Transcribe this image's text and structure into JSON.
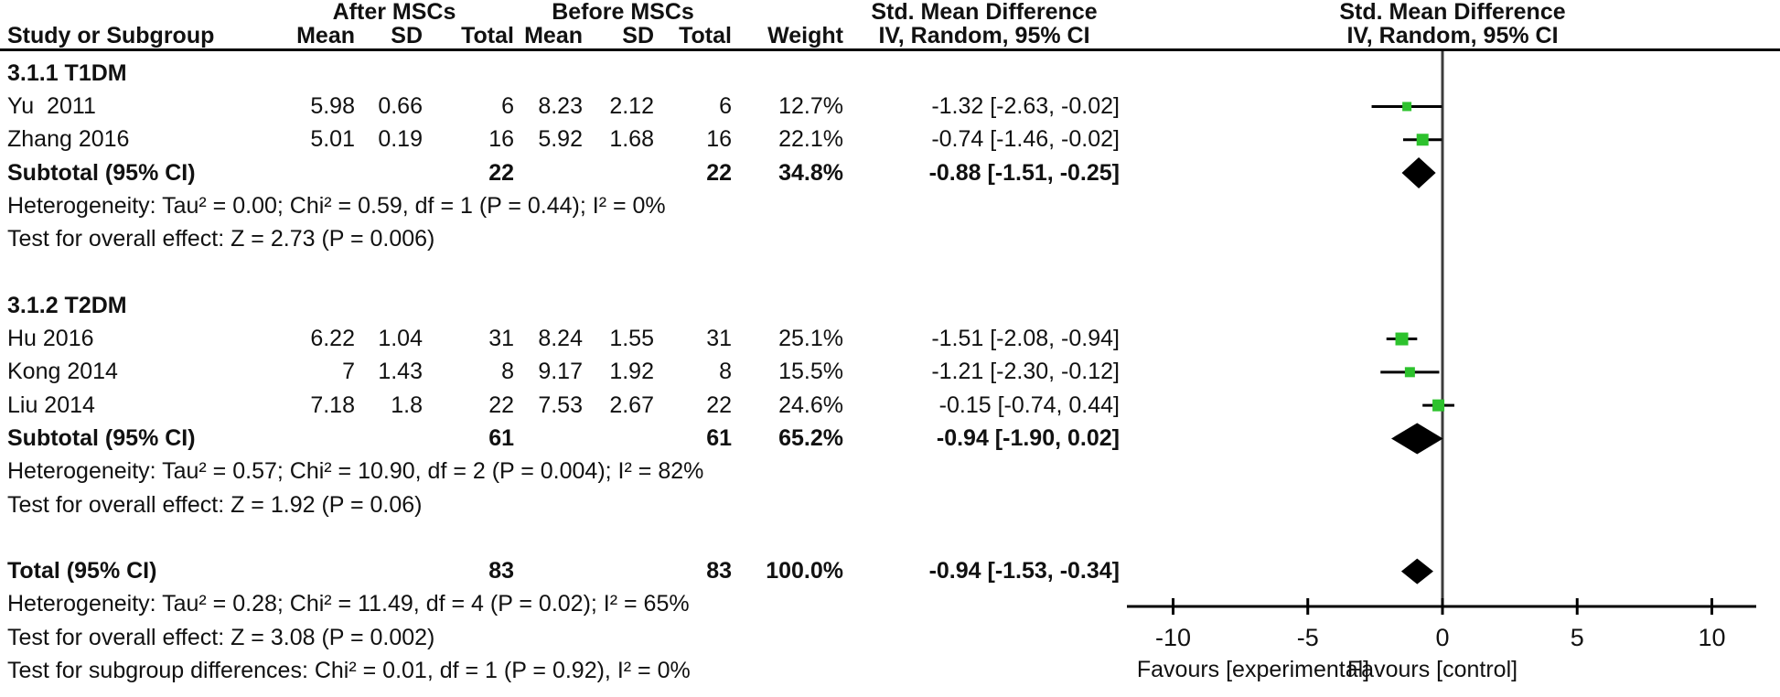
{
  "colors": {
    "marker_green": "#2DC22D",
    "diamond_black": "#000000",
    "line_black": "#000000",
    "zero_line_gray": "#3c3c3c",
    "text": "#111111"
  },
  "header": {
    "study_col": "Study or Subgroup",
    "group_after": "After MSCs",
    "group_before": "Before MSCs",
    "mean": "Mean",
    "sd": "SD",
    "total": "Total",
    "weight": "Weight",
    "smd_title": "Std. Mean Difference",
    "method": "IV, Random, 95% CI"
  },
  "table": {
    "rows": [
      {
        "type": "section",
        "label": "3.1.1 T1DM"
      },
      {
        "type": "study",
        "study": "Yu  2011",
        "mean1": "5.98",
        "sd1": "0.66",
        "total1": "6",
        "mean2": "8.23",
        "sd2": "2.12",
        "total2": "6",
        "weight": "12.7%",
        "ci": "-1.32 [-2.63, -0.02]"
      },
      {
        "type": "study",
        "study": "Zhang 2016",
        "mean1": "5.01",
        "sd1": "0.19",
        "total1": "16",
        "mean2": "5.92",
        "sd2": "1.68",
        "total2": "16",
        "weight": "22.1%",
        "ci": "-0.74 [-1.46, -0.02]"
      },
      {
        "type": "subtotal",
        "study": "Subtotal (95% CI)",
        "mean1": "",
        "sd1": "",
        "total1": "22",
        "mean2": "",
        "sd2": "",
        "total2": "22",
        "weight": "34.8%",
        "ci": "-0.88 [-1.51, -0.25]"
      },
      {
        "type": "note",
        "text": "Heterogeneity: Tau² = 0.00; Chi² = 0.59, df = 1 (P = 0.44); I² = 0%"
      },
      {
        "type": "note",
        "text": "Test for overall effect: Z = 2.73 (P = 0.006)"
      },
      {
        "type": "blank"
      },
      {
        "type": "section",
        "label": "3.1.2 T2DM"
      },
      {
        "type": "study",
        "study": "Hu 2016",
        "mean1": "6.22",
        "sd1": "1.04",
        "total1": "31",
        "mean2": "8.24",
        "sd2": "1.55",
        "total2": "31",
        "weight": "25.1%",
        "ci": "-1.51 [-2.08, -0.94]"
      },
      {
        "type": "study",
        "study": "Kong 2014",
        "mean1": "7",
        "sd1": "1.43",
        "total1": "8",
        "mean2": "9.17",
        "sd2": "1.92",
        "total2": "8",
        "weight": "15.5%",
        "ci": "-1.21 [-2.30, -0.12]"
      },
      {
        "type": "study",
        "study": "Liu 2014",
        "mean1": "7.18",
        "sd1": "1.8",
        "total1": "22",
        "mean2": "7.53",
        "sd2": "2.67",
        "total2": "22",
        "weight": "24.6%",
        "ci": "-0.15 [-0.74, 0.44]"
      },
      {
        "type": "subtotal",
        "study": "Subtotal (95% CI)",
        "mean1": "",
        "sd1": "",
        "total1": "61",
        "mean2": "",
        "sd2": "",
        "total2": "61",
        "weight": "65.2%",
        "ci": "-0.94 [-1.90, 0.02]"
      },
      {
        "type": "note",
        "text": "Heterogeneity: Tau² = 0.57; Chi² = 10.90, df = 2 (P = 0.004); I² = 82%"
      },
      {
        "type": "note",
        "text": "Test for overall effect: Z = 1.92 (P = 0.06)"
      },
      {
        "type": "blank"
      },
      {
        "type": "total",
        "study": "Total (95% CI)",
        "mean1": "",
        "sd1": "",
        "total1": "83",
        "mean2": "",
        "sd2": "",
        "total2": "83",
        "weight": "100.0%",
        "ci": "-0.94 [-1.53, -0.34]"
      },
      {
        "type": "note",
        "text": "Heterogeneity: Tau² = 0.28; Chi² = 11.49, df = 4 (P = 0.02); I² = 65%"
      },
      {
        "type": "note",
        "text": "Test for overall effect: Z = 3.08 (P = 0.002)"
      },
      {
        "type": "note",
        "text": "Test for subgroup differences: Chi² = 0.01, df = 1 (P = 0.92), I² = 0%"
      }
    ]
  },
  "chart_data": {
    "type": "forest",
    "effect_measure": "Std. Mean Difference",
    "method": "IV, Random, 95% CI",
    "xlim": [
      -10,
      10
    ],
    "x_ticks": [
      -10,
      -5,
      0,
      5,
      10
    ],
    "favours_left": "Favours [experimental]",
    "favours_right": "Favours [control]",
    "studies": [
      {
        "name": "Yu 2011",
        "subgroup": "3.1.1 T1DM",
        "smd": -1.32,
        "ci_low": -2.63,
        "ci_high": -0.02,
        "weight_pct": 12.7,
        "row": 1
      },
      {
        "name": "Zhang 2016",
        "subgroup": "3.1.1 T1DM",
        "smd": -0.74,
        "ci_low": -1.46,
        "ci_high": -0.02,
        "weight_pct": 22.1,
        "row": 2
      },
      {
        "name": "Hu 2016",
        "subgroup": "3.1.2 T2DM",
        "smd": -1.51,
        "ci_low": -2.08,
        "ci_high": -0.94,
        "weight_pct": 25.1,
        "row": 8
      },
      {
        "name": "Kong 2014",
        "subgroup": "3.1.2 T2DM",
        "smd": -1.21,
        "ci_low": -2.3,
        "ci_high": -0.12,
        "weight_pct": 15.5,
        "row": 9
      },
      {
        "name": "Liu 2014",
        "subgroup": "3.1.2 T2DM",
        "smd": -0.15,
        "ci_low": -0.74,
        "ci_high": 0.44,
        "weight_pct": 24.6,
        "row": 10
      }
    ],
    "summaries": [
      {
        "name": "Subtotal T1DM (95% CI)",
        "smd": -0.88,
        "ci_low": -1.51,
        "ci_high": -0.25,
        "row": 3
      },
      {
        "name": "Subtotal T2DM (95% CI)",
        "smd": -0.94,
        "ci_low": -1.9,
        "ci_high": 0.02,
        "row": 11
      },
      {
        "name": "Total (95% CI)",
        "smd": -0.94,
        "ci_low": -1.53,
        "ci_high": -0.34,
        "row": 15
      }
    ]
  }
}
